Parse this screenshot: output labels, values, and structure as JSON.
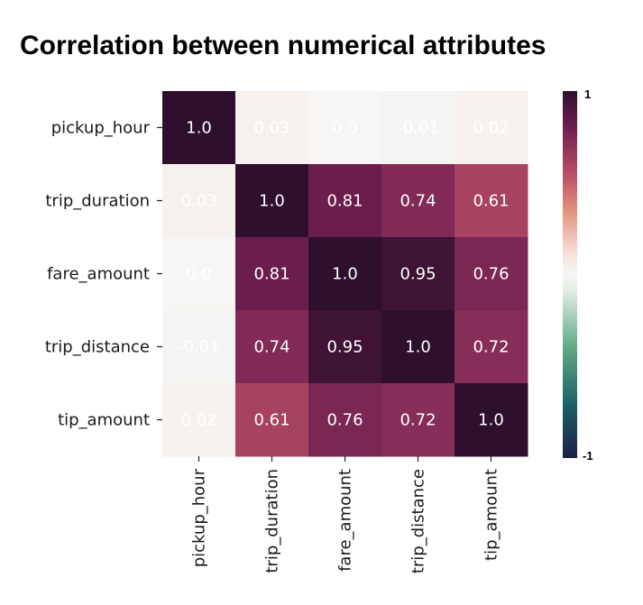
{
  "title": "Correlation between numerical attributes",
  "chart_data": {
    "type": "heatmap",
    "rows": [
      "pickup_hour",
      "trip_duration",
      "fare_amount",
      "trip_distance",
      "tip_amount"
    ],
    "columns": [
      "pickup_hour",
      "trip_duration",
      "fare_amount",
      "trip_distance",
      "tip_amount"
    ],
    "values": [
      [
        1.0,
        0.03,
        0.0,
        -0.01,
        0.02
      ],
      [
        0.03,
        1.0,
        0.81,
        0.74,
        0.61
      ],
      [
        0.0,
        0.81,
        1.0,
        0.95,
        0.76
      ],
      [
        -0.01,
        0.74,
        0.95,
        1.0,
        0.72
      ],
      [
        0.02,
        0.61,
        0.76,
        0.72,
        1.0
      ]
    ],
    "labels": [
      [
        "1.0",
        "0.03",
        "0.0",
        "-0.01",
        "0.02"
      ],
      [
        "0.03",
        "1.0",
        "0.81",
        "0.74",
        "0.61"
      ],
      [
        "0.0",
        "0.81",
        "1.0",
        "0.95",
        "0.76"
      ],
      [
        "-0.01",
        "0.74",
        "0.95",
        "1.0",
        "0.72"
      ],
      [
        "0.02",
        "0.61",
        "0.76",
        "0.72",
        "1.0"
      ]
    ],
    "vmin": -1,
    "vmax": 1,
    "colorbar": {
      "max_label": "1",
      "min_label": "-1"
    },
    "colormap": {
      "stops": [
        {
          "v": -1.0,
          "color": "#1e1f45"
        },
        {
          "v": -0.72,
          "color": "#1b5e67"
        },
        {
          "v": -0.4,
          "color": "#5fa884"
        },
        {
          "v": -0.1,
          "color": "#dcecdf"
        },
        {
          "v": 0.0,
          "color": "#f7f6f4"
        },
        {
          "v": 0.1,
          "color": "#f7e4de"
        },
        {
          "v": 0.35,
          "color": "#e2917c"
        },
        {
          "v": 0.55,
          "color": "#b94e67"
        },
        {
          "v": 0.8,
          "color": "#6e1f4f"
        },
        {
          "v": 1.0,
          "color": "#2e0f2e"
        }
      ]
    }
  }
}
